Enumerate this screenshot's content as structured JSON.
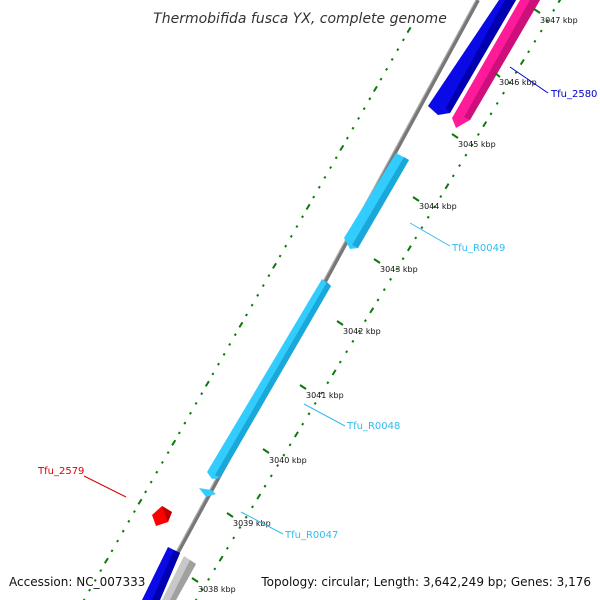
{
  "map": {
    "title": "Thermobifida fusca YX, complete genome",
    "accession": "Accession: NC_007333",
    "summary": "Topology: circular; Length: 3,642,249 bp; Genes: 3,176",
    "colors": {
      "backbone": "#8a8a8a",
      "cds_forward": "#0a0ae6",
      "cds_reverse": "#ff1a9a",
      "rna": "#33ccff",
      "other_red": "#ff0000",
      "pseudo_grey": "#c8c8c8",
      "tick": "#0a7a0a"
    }
  },
  "ticks": [
    {
      "label": "3047 kbp"
    },
    {
      "label": "3046 kbp"
    },
    {
      "label": "3045 kbp"
    },
    {
      "label": "3044 kbp"
    },
    {
      "label": "3043 kbp"
    },
    {
      "label": "3042 kbp"
    },
    {
      "label": "3041 kbp"
    },
    {
      "label": "3040 kbp"
    },
    {
      "label": "3039 kbp"
    },
    {
      "label": "3038 kbp"
    }
  ],
  "genes": [
    {
      "label": "Tfu_2580",
      "color": "#0000cc"
    },
    {
      "label": "Tfu_R0049",
      "color": "#33bbee"
    },
    {
      "label": "Tfu_R0048",
      "color": "#33bbee"
    },
    {
      "label": "Tfu_R0047",
      "color": "#33bbee"
    },
    {
      "label": "Tfu_2579",
      "color": "#dd0000"
    }
  ]
}
